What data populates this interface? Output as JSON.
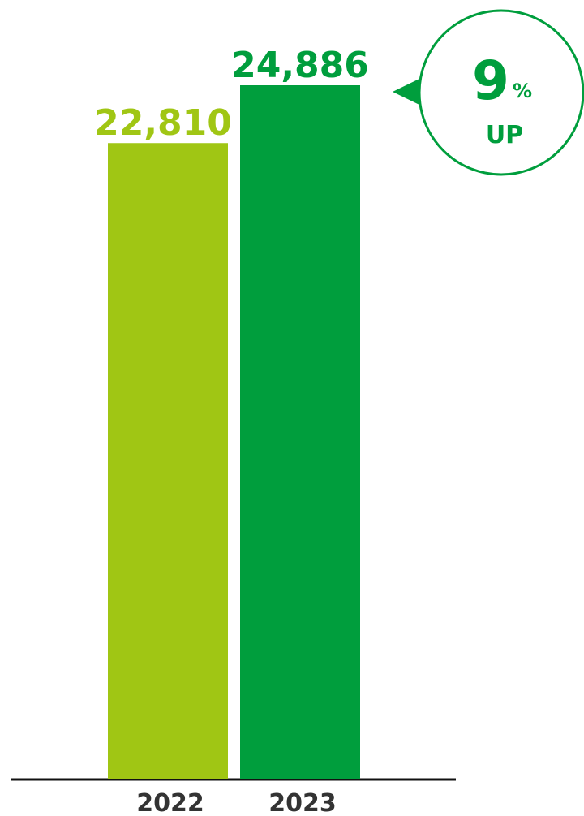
{
  "chart_data": {
    "type": "bar",
    "categories": [
      "2022",
      "2023"
    ],
    "values": [
      22810,
      24886
    ],
    "value_labels": [
      "22,810",
      "24,886"
    ],
    "colors": [
      "#a0c614",
      "#009e3d"
    ],
    "annotation": {
      "value": 9,
      "unit": "%",
      "label": "UP",
      "color": "#009e3d"
    }
  }
}
